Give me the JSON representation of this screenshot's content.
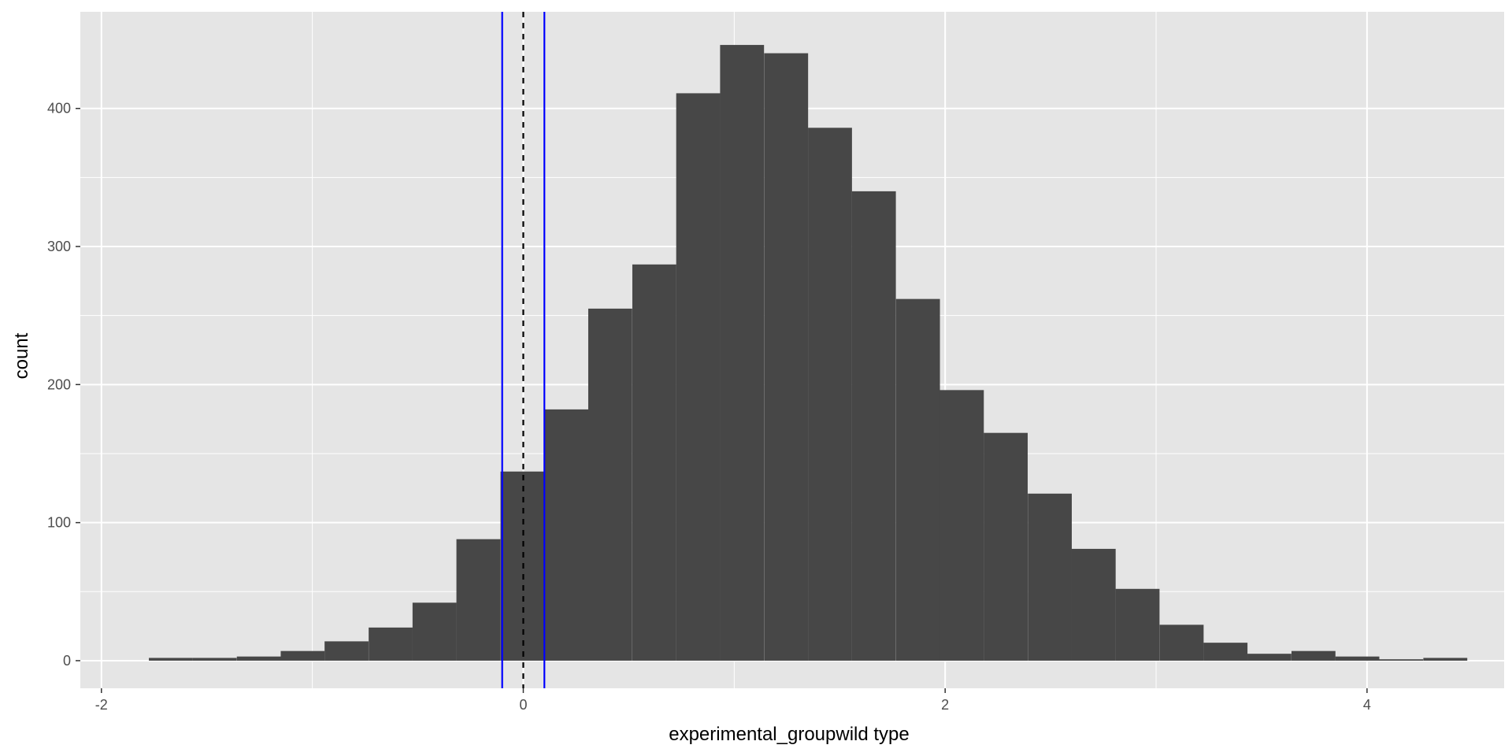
{
  "chart_data": {
    "type": "histogram",
    "xlabel": "experimental_groupwild type",
    "ylabel": "count",
    "xlim": [
      -2.1,
      4.65
    ],
    "ylim": [
      -20,
      470
    ],
    "x_ticks": [
      -2,
      0,
      2,
      4
    ],
    "x_tick_labels": [
      "-2",
      "0",
      "2",
      "4"
    ],
    "y_ticks": [
      0,
      100,
      200,
      300,
      400
    ],
    "y_tick_labels": [
      "0",
      "100",
      "200",
      "300",
      "400"
    ],
    "grid": true,
    "bin_width": 0.2083,
    "bins": [
      {
        "x0": -1.775,
        "count": 2
      },
      {
        "x0": -1.567,
        "count": 2
      },
      {
        "x0": -1.358,
        "count": 3
      },
      {
        "x0": -1.15,
        "count": 7
      },
      {
        "x0": -0.942,
        "count": 14
      },
      {
        "x0": -0.733,
        "count": 24
      },
      {
        "x0": -0.525,
        "count": 42
      },
      {
        "x0": -0.317,
        "count": 88
      },
      {
        "x0": -0.108,
        "count": 137
      },
      {
        "x0": 0.1,
        "count": 182
      },
      {
        "x0": 0.308,
        "count": 255
      },
      {
        "x0": 0.517,
        "count": 287
      },
      {
        "x0": 0.725,
        "count": 411
      },
      {
        "x0": 0.933,
        "count": 446
      },
      {
        "x0": 1.142,
        "count": 440
      },
      {
        "x0": 1.35,
        "count": 386
      },
      {
        "x0": 1.558,
        "count": 340
      },
      {
        "x0": 1.767,
        "count": 262
      },
      {
        "x0": 1.975,
        "count": 196
      },
      {
        "x0": 2.183,
        "count": 165
      },
      {
        "x0": 2.392,
        "count": 121
      },
      {
        "x0": 2.6,
        "count": 81
      },
      {
        "x0": 2.808,
        "count": 52
      },
      {
        "x0": 3.017,
        "count": 26
      },
      {
        "x0": 3.225,
        "count": 13
      },
      {
        "x0": 3.433,
        "count": 5
      },
      {
        "x0": 3.642,
        "count": 7
      },
      {
        "x0": 3.85,
        "count": 3
      },
      {
        "x0": 4.058,
        "count": 1
      },
      {
        "x0": 4.267,
        "count": 2
      }
    ],
    "vlines": [
      {
        "x": -0.1,
        "color": "#0000ff",
        "style": "solid"
      },
      {
        "x": 0.1,
        "color": "#0000ff",
        "style": "solid"
      },
      {
        "x": 0,
        "color": "#000000",
        "style": "dashed"
      }
    ],
    "colors": {
      "panel_background": "#e5e5e5",
      "grid": "#ffffff",
      "bar_fill": "#474747"
    }
  }
}
